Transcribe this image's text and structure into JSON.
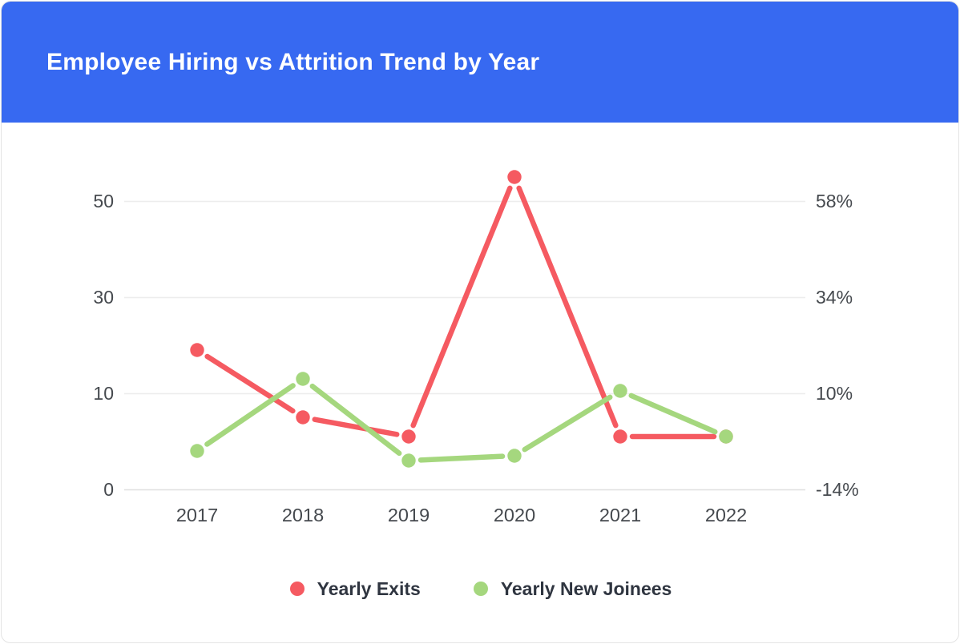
{
  "header": {
    "title": "Employee Hiring vs Attrition Trend by Year",
    "bg_color": "#3769f1",
    "text_color": "#ffffff"
  },
  "chart_data": {
    "type": "line",
    "title": "Employee Hiring vs Attrition Trend by Year",
    "categories": [
      "2017",
      "2018",
      "2019",
      "2020",
      "2021",
      "2022"
    ],
    "series": [
      {
        "name": "Yearly Exits",
        "color": "#f55a61",
        "values": [
          19,
          7.5,
          5.5,
          55,
          5.5,
          5.5
        ]
      },
      {
        "name": "Yearly New Joinees",
        "color": "#a5d77e",
        "values": [
          4,
          13,
          3,
          3.5,
          10.5,
          5.5
        ]
      }
    ],
    "left_axis": {
      "tick_labels": [
        "50",
        "30",
        "10",
        "0"
      ],
      "tick_values": [
        50,
        30,
        10,
        0
      ]
    },
    "right_axis": {
      "tick_labels": [
        "58%",
        "34%",
        "10%",
        "-14%"
      ],
      "tick_values": [
        58,
        34,
        10,
        -14
      ]
    },
    "grid": true,
    "legend_position": "bottom",
    "colors": {
      "grid_line": "#ededed",
      "baseline": "#e0e0e0",
      "axis_text": "#45494e"
    }
  }
}
